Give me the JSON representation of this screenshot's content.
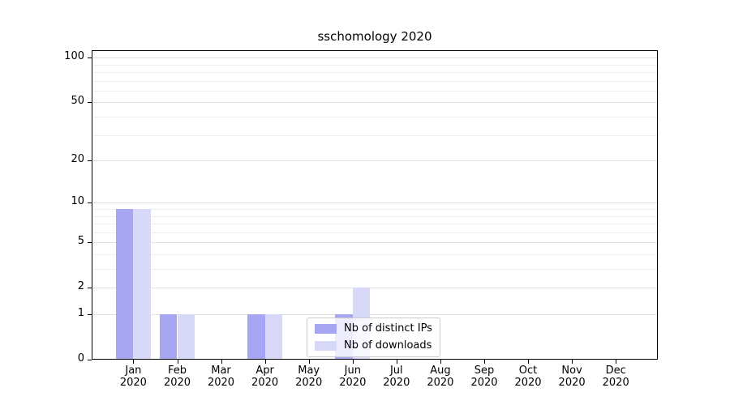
{
  "chart_data": {
    "type": "bar",
    "title": "sschomology 2020",
    "categories": [
      "Jan 2020",
      "Feb 2020",
      "Mar 2020",
      "Apr 2020",
      "May 2020",
      "Jun 2020",
      "Jul 2020",
      "Aug 2020",
      "Sep 2020",
      "Oct 2020",
      "Nov 2020",
      "Dec 2020"
    ],
    "series": [
      {
        "name": "Nb of distinct IPs",
        "color": "#a6a6f2",
        "values": [
          9,
          1,
          0,
          1,
          0,
          1,
          0,
          0,
          0,
          0,
          0,
          0
        ]
      },
      {
        "name": "Nb of downloads",
        "color": "#d8d8f8",
        "values": [
          9,
          1,
          0,
          1,
          0,
          2,
          0,
          0,
          0,
          0,
          0,
          0
        ]
      }
    ],
    "y_axis": {
      "scale": "log1p",
      "major_ticks": [
        0,
        1,
        2,
        5,
        10,
        20,
        50,
        100
      ],
      "minor_gridlines": [
        3,
        4,
        6,
        7,
        8,
        9,
        30,
        40,
        60,
        70,
        80,
        90
      ],
      "max": 112
    },
    "x_axis": {
      "tick_count": 12
    },
    "grid": true,
    "legend": {
      "position": "lower-center",
      "entries": [
        "Nb of distinct IPs",
        "Nb of downloads"
      ]
    }
  }
}
